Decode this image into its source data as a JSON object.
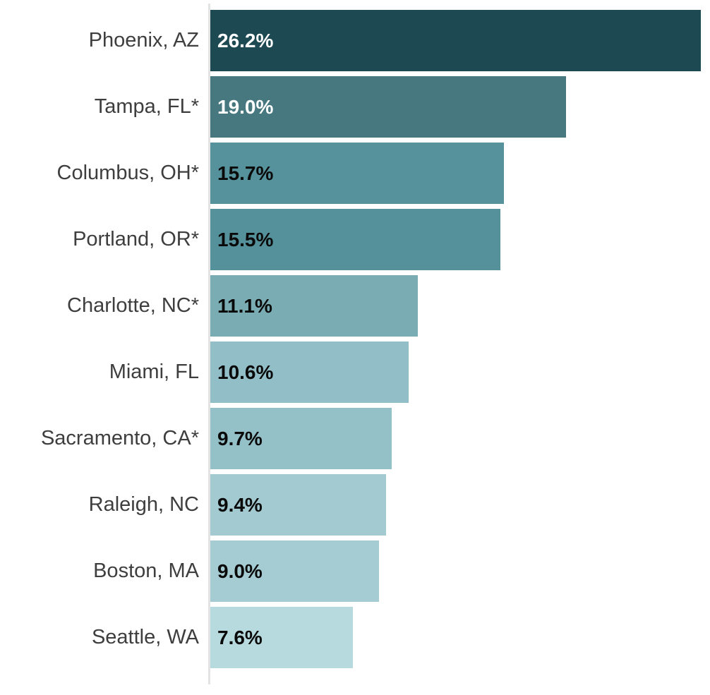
{
  "chart_data": {
    "type": "bar",
    "orientation": "horizontal",
    "title": "",
    "xlabel": "",
    "ylabel": "",
    "xlim": [
      0,
      26.7
    ],
    "grid": false,
    "axis_line_color": "#e3e3e3",
    "category_label_color": "#3e3e3e",
    "categories": [
      "Phoenix, AZ",
      "Tampa, FL*",
      "Columbus, OH*",
      "Portland, OR*",
      "Charlotte, NC*",
      "Miami, FL",
      "Sacramento, CA*",
      "Raleigh, NC",
      "Boston, MA",
      "Seattle, WA"
    ],
    "values": [
      26.2,
      19.0,
      15.7,
      15.5,
      11.1,
      10.6,
      9.7,
      9.4,
      9.0,
      7.6
    ],
    "value_labels": [
      "26.2%",
      "19.0%",
      "15.7%",
      "15.5%",
      "11.1%",
      "10.6%",
      "9.7%",
      "9.4%",
      "9.0%",
      "7.6%"
    ],
    "bar_colors": [
      "#1d4a52",
      "#47787f",
      "#56929b",
      "#55919a",
      "#7aacb4",
      "#92bfc7",
      "#94c0c8",
      "#a2cad0",
      "#a4ccd2",
      "#b7dade"
    ],
    "value_label_colors": [
      "#ffffff",
      "#ffffff",
      "#0a0a0a",
      "#0a0a0a",
      "#0a0a0a",
      "#0a0a0a",
      "#0a0a0a",
      "#0a0a0a",
      "#0a0a0a",
      "#0a0a0a"
    ]
  }
}
